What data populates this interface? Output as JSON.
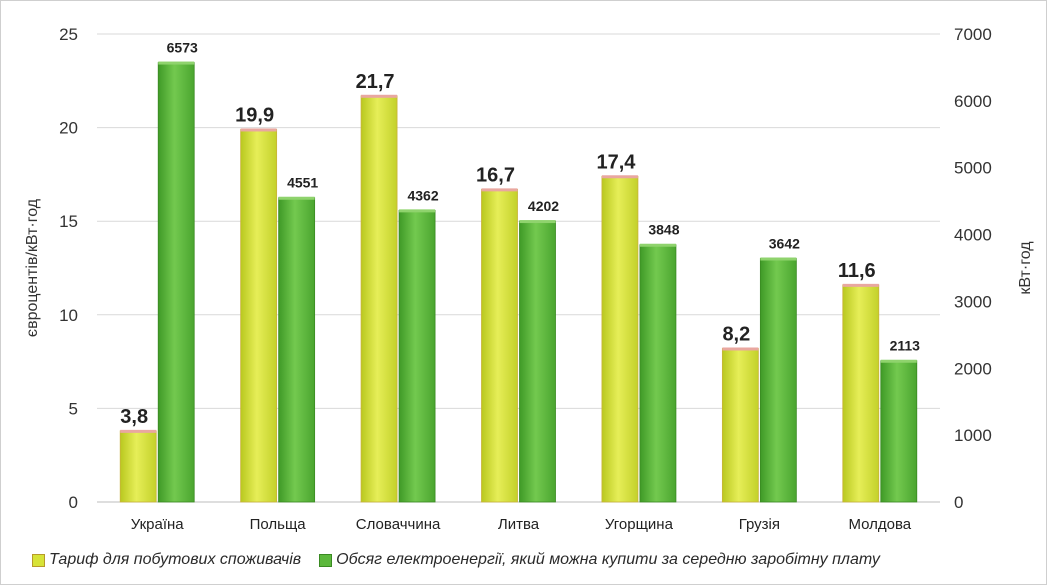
{
  "chart_data": {
    "type": "bar",
    "categories": [
      "Україна",
      "Польща",
      "Словаччина",
      "Литва",
      "Угорщина",
      "Грузія",
      "Молдова"
    ],
    "series": [
      {
        "name": "Тариф для побутових споживачів",
        "axis": "left",
        "color": "#d7e337",
        "values": [
          3.8,
          19.9,
          21.7,
          16.7,
          17.4,
          8.2,
          11.6
        ],
        "labels": [
          "3,8",
          "19,9",
          "21,7",
          "16,7",
          "17,4",
          "8,2",
          "11,6"
        ]
      },
      {
        "name": "Обсяг електроенергії, який можна купити за середню заробітну плату",
        "axis": "right",
        "color": "#5cb83c",
        "values": [
          6573,
          4551,
          4362,
          4202,
          3848,
          3642,
          2113
        ],
        "labels": [
          "6573",
          "4551",
          "4362",
          "4202",
          "3848",
          "3642",
          "2113"
        ]
      }
    ],
    "ylabel_left": "євроцентів/кВт·год",
    "ylabel_right": "кВт·год",
    "ylim_left": [
      0,
      25
    ],
    "yticks_left": [
      0,
      5,
      10,
      15,
      20,
      25
    ],
    "ylim_right": [
      0,
      7000
    ],
    "yticks_right": [
      0,
      1000,
      2000,
      3000,
      4000,
      5000,
      6000,
      7000
    ],
    "grid": true,
    "legend_position": "bottom"
  }
}
